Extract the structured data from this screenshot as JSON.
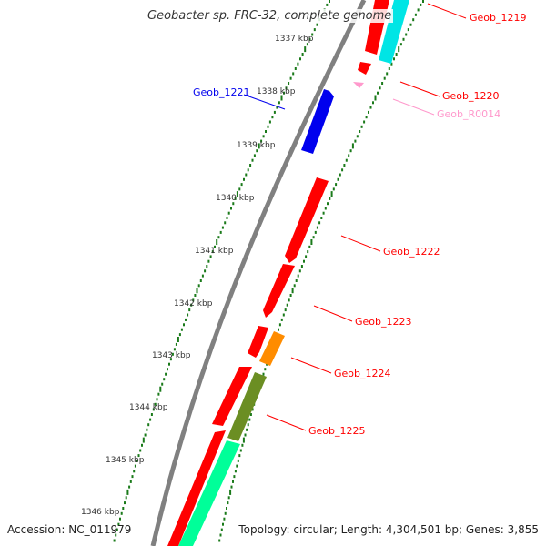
{
  "title": "Geobacter sp. FRC-32, complete genome",
  "footer": {
    "accession": "Accession: NC_011979",
    "topology": "Topology: circular; Length: 4,304,501 bp; Genes: 3,855"
  },
  "colors": {
    "backbone": "#808080",
    "tick": "#1a7a1a",
    "red": "#ff0000",
    "blue": "#0000ee",
    "cyan": "#00e5e5",
    "green_mint": "#00ff99",
    "olive": "#6b8e23",
    "orange": "#ff8c00",
    "pink": "#ff99cc"
  },
  "chart_data": {
    "type": "genome-map",
    "ruler_labels": [
      "1337 kbp",
      "1338 kbp",
      "1339 kbp",
      "1340 kbp",
      "1341 kbp",
      "1342 kbp",
      "1343 kbp",
      "1344 kbp",
      "1345 kbp",
      "1346 kbp"
    ],
    "gene_labels": [
      {
        "id": "Geob_1219",
        "color": "red"
      },
      {
        "id": "Geob_1220",
        "color": "red"
      },
      {
        "id": "Geob_R0014",
        "color": "pink"
      },
      {
        "id": "Geob_1221",
        "color": "blue"
      },
      {
        "id": "Geob_1222",
        "color": "red"
      },
      {
        "id": "Geob_1223",
        "color": "red"
      },
      {
        "id": "Geob_1224",
        "color": "red"
      },
      {
        "id": "Geob_1225",
        "color": "red"
      }
    ]
  }
}
